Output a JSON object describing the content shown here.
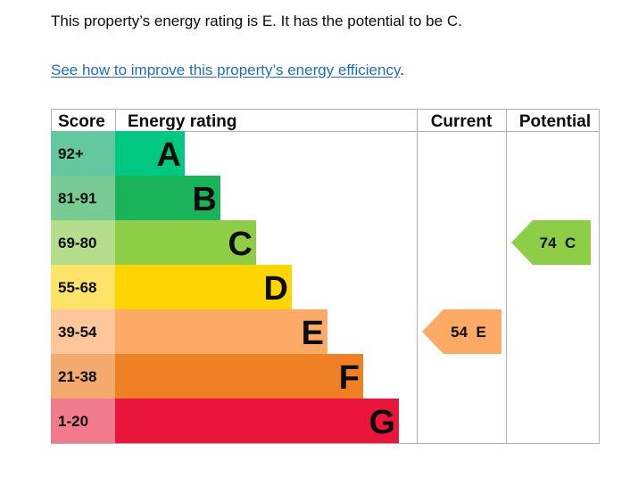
{
  "summary_text": "This property’s energy rating is E. It has the potential to be C.",
  "link": {
    "text": "See how to improve this property’s energy efficiency",
    "suffix": "."
  },
  "chart_data": {
    "type": "bar",
    "columns": {
      "score": "Score",
      "rating": "Energy rating",
      "current": "Current",
      "potential": "Potential"
    },
    "bands": [
      {
        "letter": "A",
        "range": "92+",
        "color": "#00c781",
        "score_color": "#63c8a0"
      },
      {
        "letter": "B",
        "range": "81-91",
        "color": "#19b459",
        "score_color": "#77cb93"
      },
      {
        "letter": "C",
        "range": "69-80",
        "color": "#8dce46",
        "score_color": "#b6dd8c"
      },
      {
        "letter": "D",
        "range": "55-68",
        "color": "#ffd500",
        "score_color": "#fde468"
      },
      {
        "letter": "E",
        "range": "39-54",
        "color": "#fcaa65",
        "score_color": "#fdc79b"
      },
      {
        "letter": "F",
        "range": "21-38",
        "color": "#ef8023",
        "score_color": "#f4a96e"
      },
      {
        "letter": "G",
        "range": "1-20",
        "color": "#e9153b",
        "score_color": "#f17a8c"
      }
    ],
    "current": {
      "value": 54,
      "letter": "E",
      "label": "54  E",
      "color": "#fcaa65"
    },
    "potential": {
      "value": 74,
      "letter": "C",
      "label": "74  C",
      "color": "#8dce46"
    },
    "grid_color": "#b1b4b6"
  }
}
